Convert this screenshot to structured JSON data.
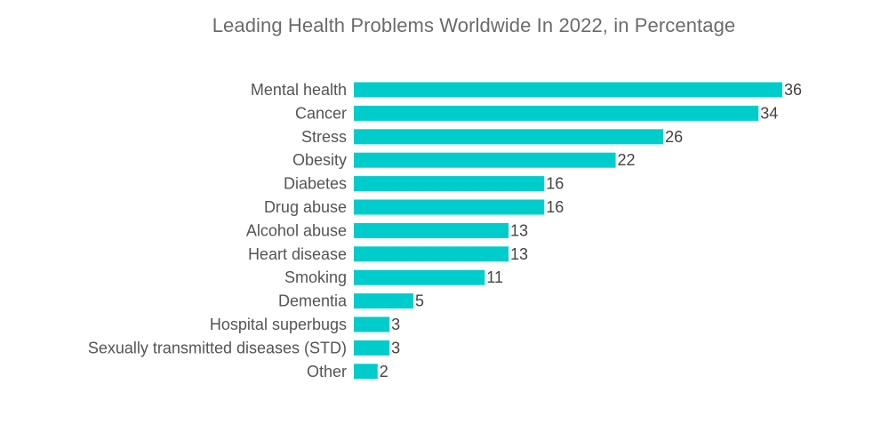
{
  "chart_data": {
    "type": "bar",
    "orientation": "horizontal",
    "title": "Leading Health Problems Worldwide In 2022, in Percentage",
    "xlabel": "",
    "ylabel": "",
    "xlim": [
      0,
      36
    ],
    "grid": false,
    "legend": "none",
    "bar_color": "#00CCCC",
    "categories": [
      "Mental health",
      "Cancer",
      "Stress",
      "Obesity",
      "Diabetes",
      "Drug abuse",
      "Alcohol abuse",
      "Heart disease",
      "Smoking",
      "Dementia",
      "Hospital superbugs",
      "Sexually transmitted diseases (STD)",
      "Other"
    ],
    "values": [
      36,
      34,
      26,
      22,
      16,
      16,
      13,
      13,
      11,
      5,
      3,
      3,
      2
    ]
  }
}
